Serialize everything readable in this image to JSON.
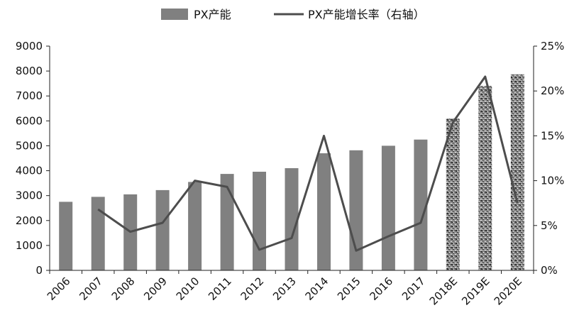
{
  "chart_data": {
    "type": "bar",
    "categories": [
      "2006",
      "2007",
      "2008",
      "2009",
      "2010",
      "2011",
      "2012",
      "2013",
      "2014",
      "2015",
      "2016",
      "2017",
      "2018E",
      "2019E",
      "2020E"
    ],
    "series": [
      {
        "name": "PX产能",
        "type": "bar",
        "axis": "left",
        "color": "#808080",
        "estimate_pattern": "speckled-gray",
        "values": [
          2750,
          2950,
          3050,
          3220,
          3550,
          3870,
          3960,
          4100,
          4700,
          4820,
          5000,
          5250,
          6100,
          7400,
          7870
        ]
      },
      {
        "name": "PX产能增长率（右轴）",
        "type": "line",
        "axis": "right",
        "color": "#4d4d4d",
        "values": [
          null,
          6.8,
          4.3,
          5.3,
          10.0,
          9.3,
          2.3,
          3.6,
          15.0,
          2.2,
          3.8,
          5.3,
          16.5,
          21.6,
          7.5
        ]
      }
    ],
    "estimate_categories": [
      "2018E",
      "2019E",
      "2020E"
    ],
    "left_axis": {
      "ylim": [
        0,
        9000
      ],
      "ticks": [
        0,
        1000,
        2000,
        3000,
        4000,
        5000,
        6000,
        7000,
        8000,
        9000
      ],
      "tick_labels": [
        "0",
        "1000",
        "2000",
        "3000",
        "4000",
        "5000",
        "6000",
        "7000",
        "8000",
        "9000"
      ]
    },
    "right_axis": {
      "ylim": [
        0,
        25
      ],
      "ticks": [
        0,
        5,
        10,
        15,
        20,
        25
      ],
      "tick_labels": [
        "0%",
        "5%",
        "10%",
        "15%",
        "20%",
        "25%"
      ]
    },
    "title": "",
    "xlabel": "",
    "ylabel": "",
    "grid": false,
    "legend_position": "top-center"
  }
}
